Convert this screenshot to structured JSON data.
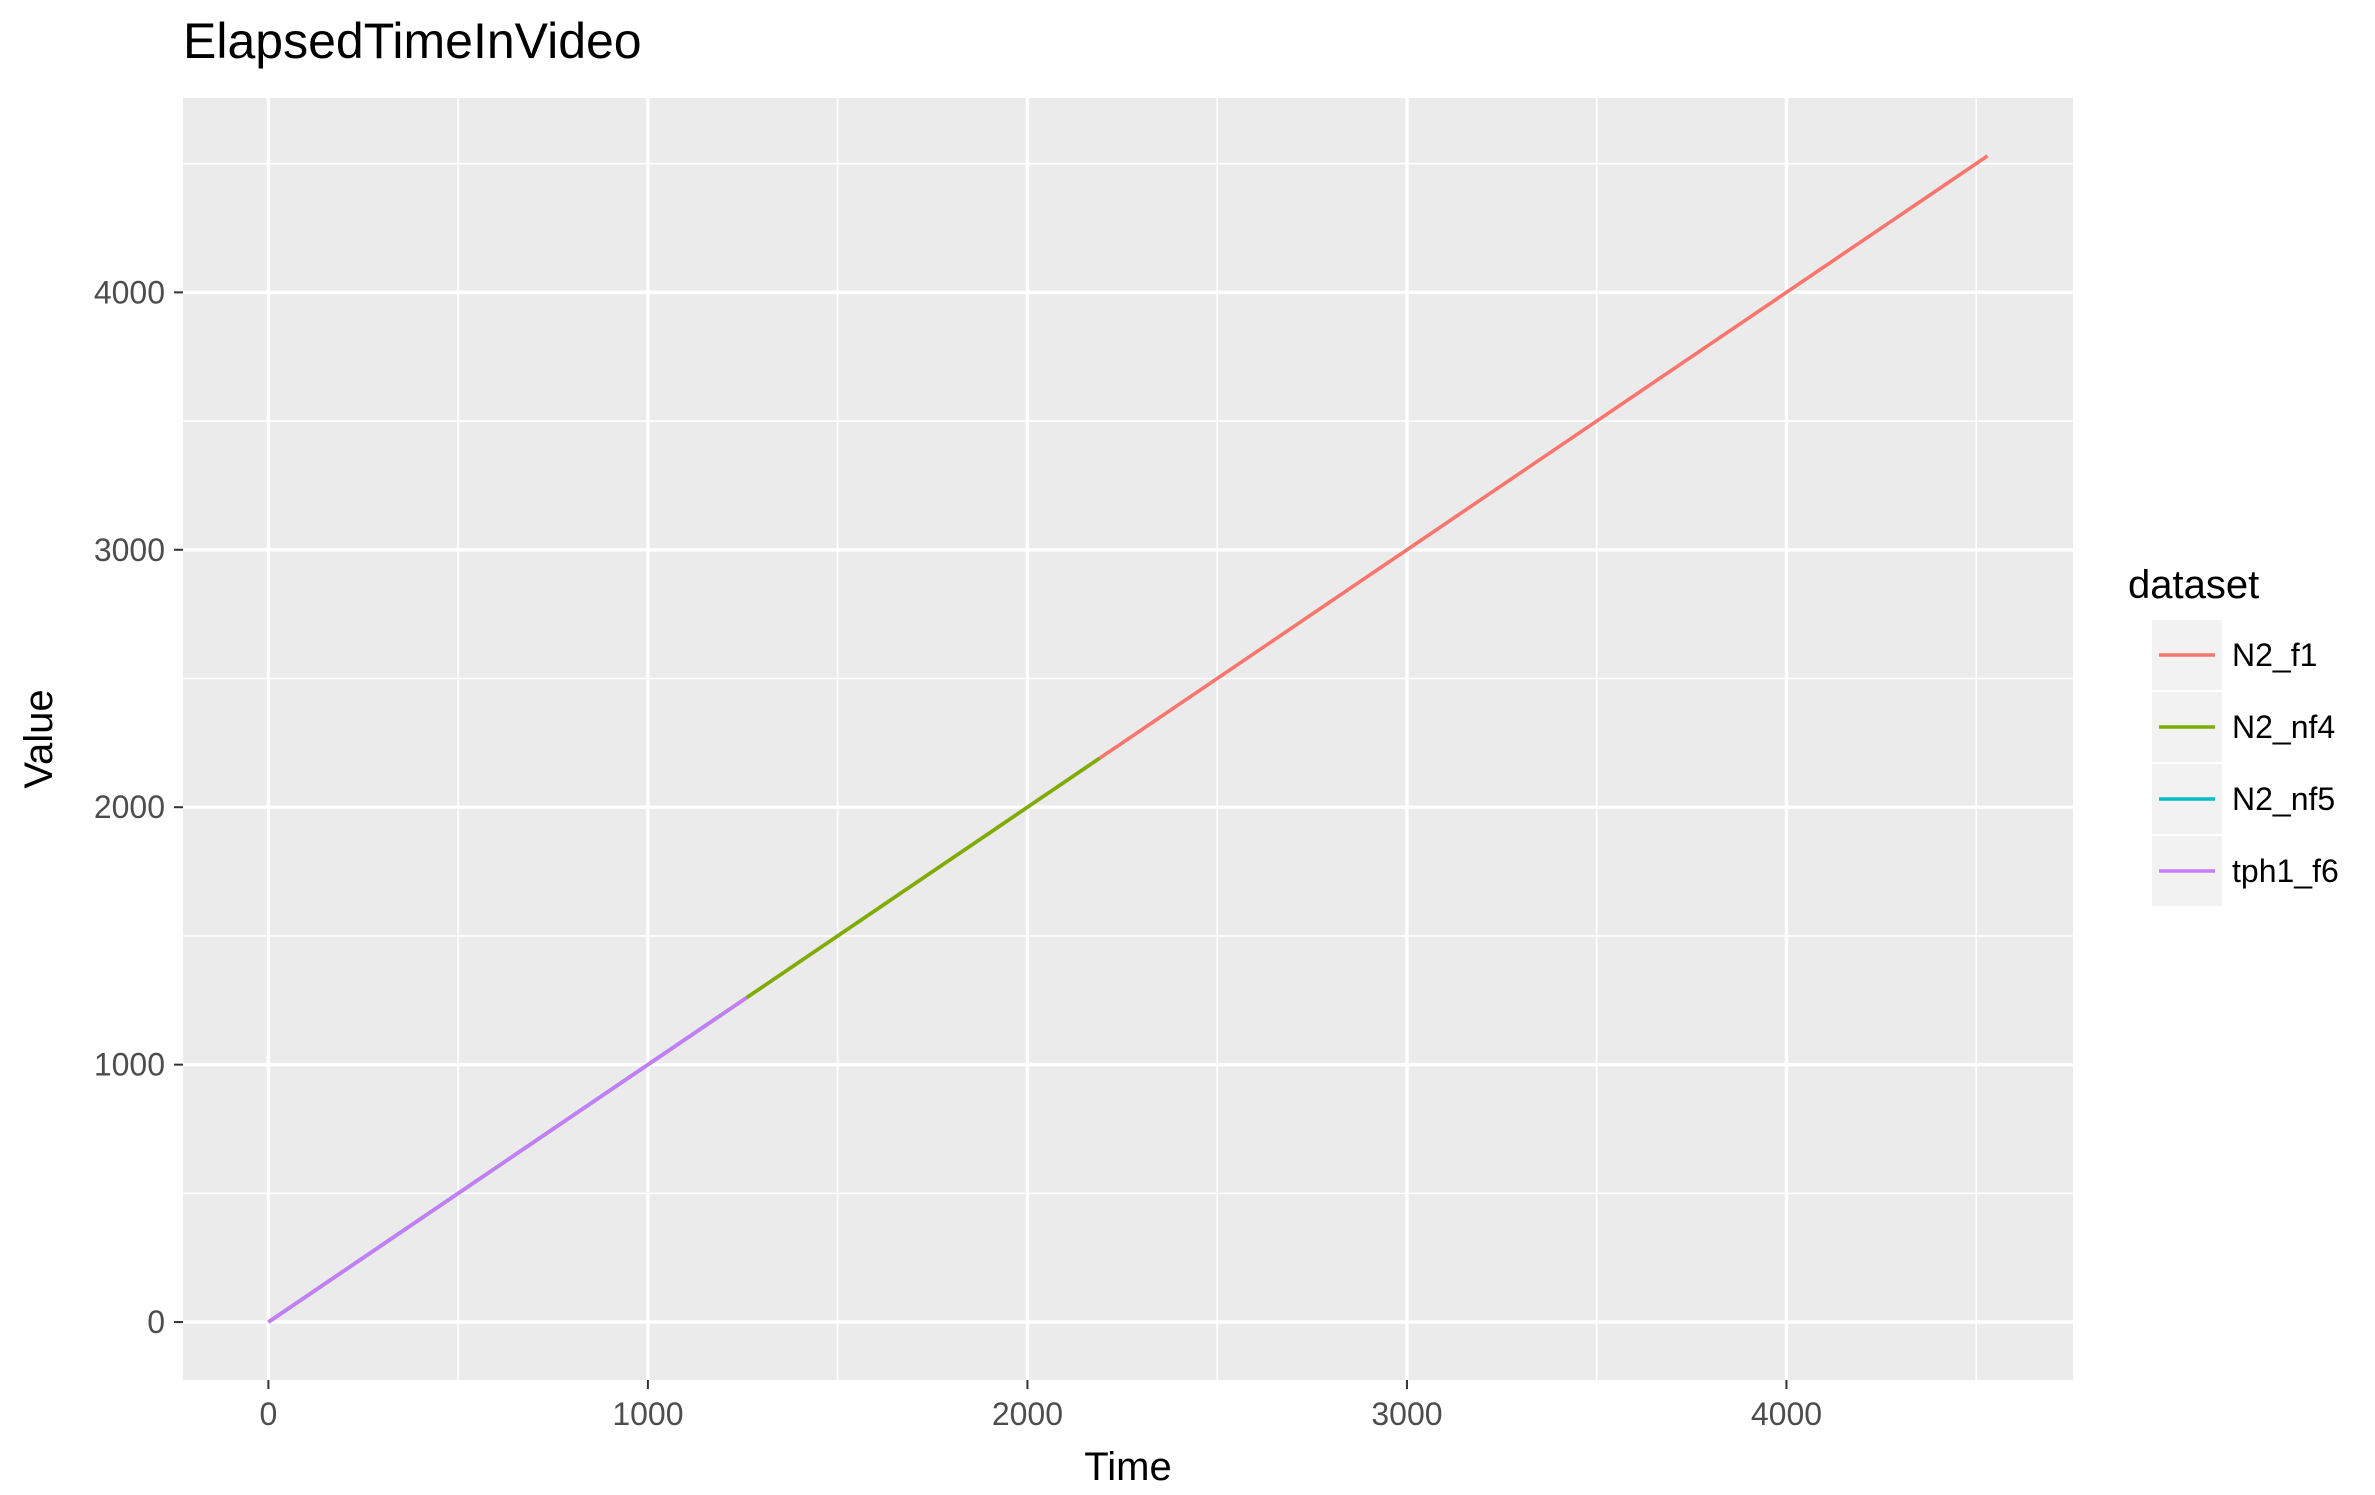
{
  "chart_data": {
    "type": "line",
    "title": "ElapsedTimeInVideo",
    "xlabel": "Time",
    "ylabel": "Value",
    "xlim": [
      -225,
      4755
    ],
    "ylim": [
      -225,
      4755
    ],
    "x_ticks": [
      0,
      1000,
      2000,
      3000,
      4000
    ],
    "y_ticks": [
      0,
      1000,
      2000,
      3000,
      4000
    ],
    "x_minor": [
      500,
      1500,
      2500,
      3500,
      4500
    ],
    "y_minor": [
      500,
      1500,
      2500,
      3500,
      4500
    ],
    "grid": true,
    "legend": {
      "title": "dataset",
      "position": "right"
    },
    "series": [
      {
        "name": "N2_f1",
        "color": "#F8766D",
        "x": [
          0,
          4530
        ],
        "y": [
          0,
          4530
        ]
      },
      {
        "name": "N2_nf4",
        "color": "#7CAE00",
        "x": [
          0,
          2190
        ],
        "y": [
          0,
          2190
        ]
      },
      {
        "name": "N2_nf5",
        "color": "#00BFC4",
        "x": [
          0,
          1220
        ],
        "y": [
          0,
          1220
        ]
      },
      {
        "name": "tph1_f6",
        "color": "#C77CFF",
        "x": [
          0,
          1260
        ],
        "y": [
          0,
          1260
        ]
      }
    ]
  }
}
